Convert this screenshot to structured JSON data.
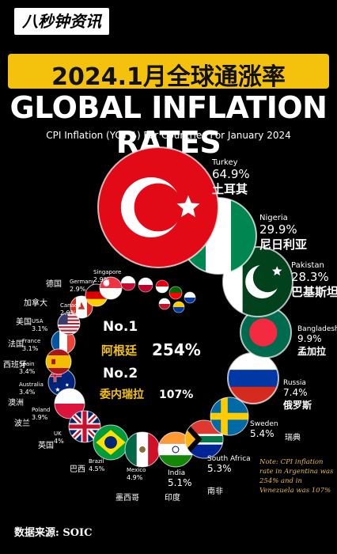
{
  "header": {
    "brand": "八秒钟资讯",
    "title_cn": "2024.1月全球通涨率",
    "title_en": "GLOBAL INFLATION RATES",
    "subtitle": "CPI Inflation (YOY%) For Countries For January 2024"
  },
  "center": {
    "no1": "No.1",
    "no1_country": "阿根廷",
    "no1_value": "254%",
    "no2": "No.2",
    "no2_country": "委内瑞拉",
    "no2_value": "107%"
  },
  "note": "Note: CPI inflation rate in Argentina was 254% and in Venezuela was 107%",
  "source": {
    "label": "数据来源:",
    "name": "SOIC"
  },
  "colors": {
    "banner": "#f4c20d",
    "note": "#e6b84a"
  },
  "chart_data": {
    "type": "bubble",
    "title": "GLOBAL INFLATION RATES",
    "unit": "CPI Inflation (YOY%)",
    "series": [
      {
        "country": "Turkey",
        "cn": "土耳其",
        "value": 64.9,
        "label": "64.9%"
      },
      {
        "country": "Nigeria",
        "cn": "尼日利亚",
        "value": 29.9,
        "label": "29.9%"
      },
      {
        "country": "Pakistan",
        "cn": "巴基斯坦",
        "value": 28.3,
        "label": "28.3%"
      },
      {
        "country": "Bangladesh",
        "cn": "孟加拉",
        "value": 9.9,
        "label": "9.9%"
      },
      {
        "country": "Russia",
        "cn": "俄罗斯",
        "value": 7.4,
        "label": "7.4%"
      },
      {
        "country": "Sweden",
        "cn": "瑞典",
        "value": 5.4,
        "label": "5.4%"
      },
      {
        "country": "South Africa",
        "cn": "南非",
        "value": 5.3,
        "label": "5.3%"
      },
      {
        "country": "India",
        "cn": "印度",
        "value": 5.1,
        "label": "5.1%"
      },
      {
        "country": "Mexico",
        "cn": "墨西哥",
        "value": 4.9,
        "label": "4.9%"
      },
      {
        "country": "Brazil",
        "cn": "巴西",
        "value": 4.5,
        "label": "4.5%"
      },
      {
        "country": "UK",
        "cn": "英国",
        "value": 4,
        "label": "4%"
      },
      {
        "country": "Poland",
        "cn": "波兰",
        "value": 3.9,
        "label": "3.9%"
      },
      {
        "country": "Australia",
        "cn": "澳洲",
        "value": 3.4,
        "label": "3.4%"
      },
      {
        "country": "Spain",
        "cn": "西班牙",
        "value": 3.4,
        "label": "3.4%"
      },
      {
        "country": "France",
        "cn": "法国",
        "value": 3.1,
        "label": "3.1%"
      },
      {
        "country": "USA",
        "cn": "美国",
        "value": 3.1,
        "label": "3.1%"
      },
      {
        "country": "Canada",
        "cn": "加拿大",
        "value": 2.9,
        "label": "2.9%"
      },
      {
        "country": "Germany",
        "cn": "德国",
        "value": 2.9,
        "label": "2.9%"
      },
      {
        "country": "Singapore",
        "cn": "",
        "value": 2.9,
        "label": "2.9%"
      }
    ]
  }
}
